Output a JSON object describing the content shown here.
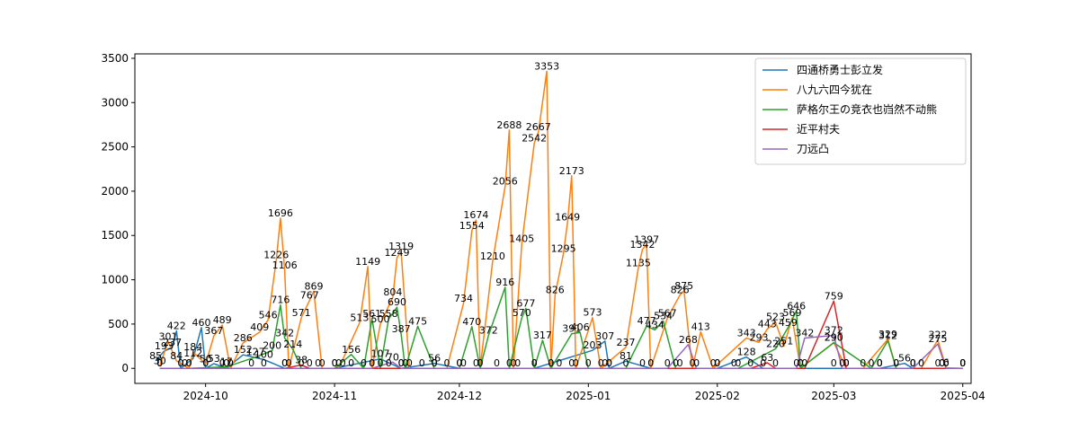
{
  "chart_data": {
    "type": "line",
    "title": "",
    "xlabel": "",
    "ylabel": "",
    "x_range": [
      "2024-09-14",
      "2025-04-03"
    ],
    "ylim": [
      -170,
      3550
    ],
    "grid": false,
    "legend_position": "upper right",
    "x_ticks": [
      {
        "date": "2024-10-01",
        "label": "2024-10"
      },
      {
        "date": "2024-11-01",
        "label": "2024-11"
      },
      {
        "date": "2024-12-01",
        "label": "2024-12"
      },
      {
        "date": "2025-01-01",
        "label": "2025-01"
      },
      {
        "date": "2025-02-01",
        "label": "2025-02"
      },
      {
        "date": "2025-03-01",
        "label": "2025-03"
      },
      {
        "date": "2025-04-01",
        "label": "2025-04"
      }
    ],
    "y_ticks": [
      0,
      500,
      1000,
      1500,
      2000,
      2500,
      3000,
      3500
    ],
    "series": [
      {
        "name": "四通桥勇士彭立发",
        "color": "#1f77b4",
        "points": [
          {
            "x": "2024-09-19",
            "y": 85
          },
          {
            "x": "2024-09-21",
            "y": 193
          },
          {
            "x": "2024-09-23",
            "y": 237
          },
          {
            "x": "2024-09-24",
            "y": 422
          },
          {
            "x": "2024-09-25",
            "y": 0
          },
          {
            "x": "2024-09-28",
            "y": 112
          },
          {
            "x": "2024-09-30",
            "y": 460
          },
          {
            "x": "2024-10-01",
            "y": 0
          },
          {
            "x": "2024-10-03",
            "y": 53
          },
          {
            "x": "2024-10-06",
            "y": 0
          },
          {
            "x": "2024-10-10",
            "y": 152
          },
          {
            "x": "2024-10-15",
            "y": 100
          },
          {
            "x": "2024-10-20",
            "y": 0
          },
          {
            "x": "2024-11-01",
            "y": 0
          },
          {
            "x": "2024-11-12",
            "y": 107
          },
          {
            "x": "2024-11-17",
            "y": 0
          },
          {
            "x": "2024-11-25",
            "y": 56
          },
          {
            "x": "2024-12-01",
            "y": 0
          },
          {
            "x": "2024-12-19",
            "y": 0
          },
          {
            "x": "2025-01-02",
            "y": 203
          },
          {
            "x": "2025-01-05",
            "y": 307
          },
          {
            "x": "2025-01-06",
            "y": 0
          },
          {
            "x": "2025-01-10",
            "y": 81
          },
          {
            "x": "2025-01-16",
            "y": 0
          },
          {
            "x": "2025-02-01",
            "y": 0
          },
          {
            "x": "2025-02-08",
            "y": 128
          },
          {
            "x": "2025-02-12",
            "y": 0
          },
          {
            "x": "2025-03-01",
            "y": 0
          },
          {
            "x": "2025-03-12",
            "y": 0
          },
          {
            "x": "2025-03-18",
            "y": 56
          },
          {
            "x": "2025-03-20",
            "y": 0
          },
          {
            "x": "2025-03-27",
            "y": 0
          },
          {
            "x": "2025-04-01",
            "y": 0
          }
        ]
      },
      {
        "name": "八九六四今犹在",
        "color": "#ff7f0e",
        "points": [
          {
            "x": "2024-09-20",
            "y": 30
          },
          {
            "x": "2024-09-22",
            "y": 301
          },
          {
            "x": "2024-09-24",
            "y": 84
          },
          {
            "x": "2024-09-27",
            "y": 0
          },
          {
            "x": "2024-09-28",
            "y": 184
          },
          {
            "x": "2024-10-01",
            "y": 50
          },
          {
            "x": "2024-10-03",
            "y": 367
          },
          {
            "x": "2024-10-05",
            "y": 489
          },
          {
            "x": "2024-10-07",
            "y": 0
          },
          {
            "x": "2024-10-10",
            "y": 286
          },
          {
            "x": "2024-10-14",
            "y": 409
          },
          {
            "x": "2024-10-16",
            "y": 546
          },
          {
            "x": "2024-10-18",
            "y": 1226
          },
          {
            "x": "2024-10-19",
            "y": 1696
          },
          {
            "x": "2024-10-20",
            "y": 1106
          },
          {
            "x": "2024-10-21",
            "y": 0
          },
          {
            "x": "2024-10-24",
            "y": 571
          },
          {
            "x": "2024-10-26",
            "y": 767
          },
          {
            "x": "2024-10-27",
            "y": 869
          },
          {
            "x": "2024-10-29",
            "y": 0
          },
          {
            "x": "2024-11-02",
            "y": 0
          },
          {
            "x": "2024-11-07",
            "y": 513
          },
          {
            "x": "2024-11-09",
            "y": 1149
          },
          {
            "x": "2024-11-10",
            "y": 0
          },
          {
            "x": "2024-11-12",
            "y": 500
          },
          {
            "x": "2024-11-15",
            "y": 804
          },
          {
            "x": "2024-11-16",
            "y": 1249
          },
          {
            "x": "2024-11-17",
            "y": 1319
          },
          {
            "x": "2024-11-19",
            "y": 0
          },
          {
            "x": "2024-11-25",
            "y": 0
          },
          {
            "x": "2024-11-28",
            "y": 0
          },
          {
            "x": "2024-12-02",
            "y": 734
          },
          {
            "x": "2024-12-04",
            "y": 1554
          },
          {
            "x": "2024-12-05",
            "y": 1674
          },
          {
            "x": "2024-12-06",
            "y": 0
          },
          {
            "x": "2024-12-09",
            "y": 1210
          },
          {
            "x": "2024-12-12",
            "y": 2056
          },
          {
            "x": "2024-12-13",
            "y": 2688
          },
          {
            "x": "2024-12-14",
            "y": 0
          },
          {
            "x": "2024-12-16",
            "y": 1405
          },
          {
            "x": "2024-12-19",
            "y": 2542
          },
          {
            "x": "2024-12-20",
            "y": 2667
          },
          {
            "x": "2024-12-22",
            "y": 3353
          },
          {
            "x": "2024-12-23",
            "y": 0
          },
          {
            "x": "2024-12-24",
            "y": 826
          },
          {
            "x": "2024-12-26",
            "y": 1295
          },
          {
            "x": "2024-12-27",
            "y": 1649
          },
          {
            "x": "2024-12-28",
            "y": 2173
          },
          {
            "x": "2024-12-29",
            "y": 0
          },
          {
            "x": "2025-01-02",
            "y": 573
          },
          {
            "x": "2025-01-04",
            "y": 0
          },
          {
            "x": "2025-01-10",
            "y": 237
          },
          {
            "x": "2025-01-13",
            "y": 1135
          },
          {
            "x": "2025-01-14",
            "y": 1342
          },
          {
            "x": "2025-01-15",
            "y": 1397
          },
          {
            "x": "2025-01-16",
            "y": 0
          },
          {
            "x": "2025-01-20",
            "y": 567
          },
          {
            "x": "2025-01-23",
            "y": 826
          },
          {
            "x": "2025-01-24",
            "y": 875
          },
          {
            "x": "2025-01-26",
            "y": 0
          },
          {
            "x": "2025-01-28",
            "y": 413
          },
          {
            "x": "2025-01-31",
            "y": 0
          },
          {
            "x": "2025-02-08",
            "y": 343
          },
          {
            "x": "2025-02-11",
            "y": 293
          },
          {
            "x": "2025-02-13",
            "y": 443
          },
          {
            "x": "2025-02-15",
            "y": 523
          },
          {
            "x": "2025-02-17",
            "y": 251
          },
          {
            "x": "2025-02-19",
            "y": 569
          },
          {
            "x": "2025-02-21",
            "y": 0
          },
          {
            "x": "2025-03-01",
            "y": 290
          },
          {
            "x": "2025-03-04",
            "y": 0
          },
          {
            "x": "2025-03-08",
            "y": 0
          },
          {
            "x": "2025-03-14",
            "y": 329
          },
          {
            "x": "2025-03-16",
            "y": 0
          },
          {
            "x": "2025-03-22",
            "y": 0
          },
          {
            "x": "2025-03-26",
            "y": 322
          },
          {
            "x": "2025-03-28",
            "y": 6
          },
          {
            "x": "2025-04-01",
            "y": 0
          }
        ]
      },
      {
        "name": "萨格尔王の竞衣也岿然不动熊",
        "color": "#2ca02c",
        "points": [
          {
            "x": "2024-09-20",
            "y": 0
          },
          {
            "x": "2024-09-27",
            "y": 0
          },
          {
            "x": "2024-10-06",
            "y": 17
          },
          {
            "x": "2024-10-13",
            "y": 127
          },
          {
            "x": "2024-10-17",
            "y": 200
          },
          {
            "x": "2024-10-19",
            "y": 716
          },
          {
            "x": "2024-10-20",
            "y": 342
          },
          {
            "x": "2024-10-22",
            "y": 214
          },
          {
            "x": "2024-10-24",
            "y": 0
          },
          {
            "x": "2024-11-01",
            "y": 0
          },
          {
            "x": "2024-11-05",
            "y": 156
          },
          {
            "x": "2024-11-08",
            "y": 0
          },
          {
            "x": "2024-11-10",
            "y": 561
          },
          {
            "x": "2024-11-12",
            "y": 0
          },
          {
            "x": "2024-11-14",
            "y": 558
          },
          {
            "x": "2024-11-16",
            "y": 690
          },
          {
            "x": "2024-11-17",
            "y": 387
          },
          {
            "x": "2024-11-18",
            "y": 0
          },
          {
            "x": "2024-11-21",
            "y": 475
          },
          {
            "x": "2024-11-25",
            "y": 0
          },
          {
            "x": "2024-12-01",
            "y": 0
          },
          {
            "x": "2024-12-04",
            "y": 470
          },
          {
            "x": "2024-12-06",
            "y": 0
          },
          {
            "x": "2024-12-08",
            "y": 372
          },
          {
            "x": "2024-12-12",
            "y": 916
          },
          {
            "x": "2024-12-13",
            "y": 0
          },
          {
            "x": "2024-12-16",
            "y": 570
          },
          {
            "x": "2024-12-17",
            "y": 677
          },
          {
            "x": "2024-12-19",
            "y": 0
          },
          {
            "x": "2024-12-21",
            "y": 317
          },
          {
            "x": "2024-12-23",
            "y": 0
          },
          {
            "x": "2024-12-28",
            "y": 391
          },
          {
            "x": "2024-12-30",
            "y": 406
          },
          {
            "x": "2025-01-01",
            "y": 0
          },
          {
            "x": "2025-01-10",
            "y": 0
          },
          {
            "x": "2025-01-15",
            "y": 477
          },
          {
            "x": "2025-01-17",
            "y": 434
          },
          {
            "x": "2025-01-19",
            "y": 534
          },
          {
            "x": "2025-01-22",
            "y": 0
          },
          {
            "x": "2025-02-01",
            "y": 0
          },
          {
            "x": "2025-02-06",
            "y": 0
          },
          {
            "x": "2025-02-15",
            "y": 220
          },
          {
            "x": "2025-02-18",
            "y": 459
          },
          {
            "x": "2025-02-20",
            "y": 646
          },
          {
            "x": "2025-02-21",
            "y": 0
          },
          {
            "x": "2025-03-01",
            "y": 290
          },
          {
            "x": "2025-03-10",
            "y": 0
          },
          {
            "x": "2025-03-14",
            "y": 312
          },
          {
            "x": "2025-03-16",
            "y": 0
          },
          {
            "x": "2025-03-26",
            "y": 0
          },
          {
            "x": "2025-04-01",
            "y": 0
          }
        ]
      },
      {
        "name": "近平村夫",
        "color": "#d62728",
        "points": [
          {
            "x": "2024-09-20",
            "y": 0
          },
          {
            "x": "2024-09-26",
            "y": 0
          },
          {
            "x": "2024-10-05",
            "y": 0
          },
          {
            "x": "2024-10-12",
            "y": 0
          },
          {
            "x": "2024-10-20",
            "y": 0
          },
          {
            "x": "2024-10-24",
            "y": 38
          },
          {
            "x": "2024-10-26",
            "y": 0
          },
          {
            "x": "2024-11-05",
            "y": 0
          },
          {
            "x": "2024-11-14",
            "y": 0
          },
          {
            "x": "2024-11-22",
            "y": 0
          },
          {
            "x": "2024-12-02",
            "y": 0
          },
          {
            "x": "2024-12-10",
            "y": 0
          },
          {
            "x": "2024-12-19",
            "y": 0
          },
          {
            "x": "2024-12-28",
            "y": 0
          },
          {
            "x": "2025-01-06",
            "y": 0
          },
          {
            "x": "2025-01-14",
            "y": 0
          },
          {
            "x": "2025-01-23",
            "y": 0
          },
          {
            "x": "2025-02-01",
            "y": 0
          },
          {
            "x": "2025-02-09",
            "y": 0
          },
          {
            "x": "2025-02-13",
            "y": 63
          },
          {
            "x": "2025-02-15",
            "y": 0
          },
          {
            "x": "2025-02-22",
            "y": 0
          },
          {
            "x": "2025-03-01",
            "y": 759
          },
          {
            "x": "2025-03-04",
            "y": 0
          },
          {
            "x": "2025-03-12",
            "y": 0
          },
          {
            "x": "2025-03-20",
            "y": 0
          },
          {
            "x": "2025-03-27",
            "y": 0
          },
          {
            "x": "2025-04-01",
            "y": 0
          }
        ]
      },
      {
        "name": "刀远凸",
        "color": "#9467bd",
        "points": [
          {
            "x": "2024-09-20",
            "y": 0
          },
          {
            "x": "2024-10-01",
            "y": 0
          },
          {
            "x": "2024-10-15",
            "y": 0
          },
          {
            "x": "2024-10-28",
            "y": 0
          },
          {
            "x": "2024-11-03",
            "y": 0
          },
          {
            "x": "2024-11-10",
            "y": 0
          },
          {
            "x": "2024-11-15",
            "y": 70
          },
          {
            "x": "2024-11-17",
            "y": 0
          },
          {
            "x": "2024-11-25",
            "y": 0
          },
          {
            "x": "2024-12-05",
            "y": 0
          },
          {
            "x": "2024-12-15",
            "y": 0
          },
          {
            "x": "2024-12-25",
            "y": 0
          },
          {
            "x": "2025-01-05",
            "y": 0
          },
          {
            "x": "2025-01-20",
            "y": 0
          },
          {
            "x": "2025-01-25",
            "y": 268
          },
          {
            "x": "2025-01-27",
            "y": 0
          },
          {
            "x": "2025-02-05",
            "y": 0
          },
          {
            "x": "2025-02-20",
            "y": 0
          },
          {
            "x": "2025-02-22",
            "y": 342
          },
          {
            "x": "2025-03-01",
            "y": 372
          },
          {
            "x": "2025-03-03",
            "y": 0
          },
          {
            "x": "2025-03-12",
            "y": 0
          },
          {
            "x": "2025-03-20",
            "y": 0
          },
          {
            "x": "2025-03-26",
            "y": 275
          },
          {
            "x": "2025-03-28",
            "y": 0
          },
          {
            "x": "2025-04-01",
            "y": 0
          }
        ]
      }
    ]
  }
}
